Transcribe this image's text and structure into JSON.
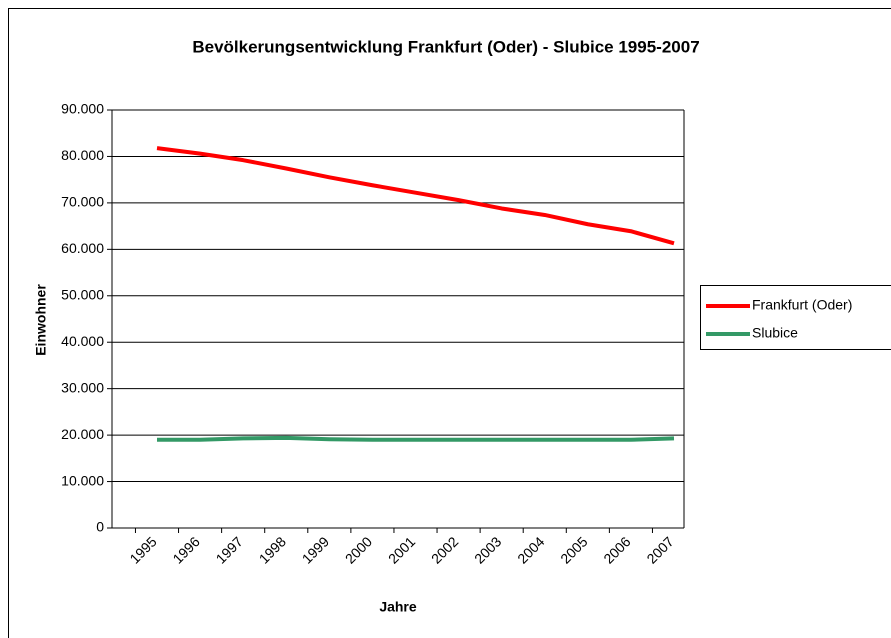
{
  "chart_data": {
    "type": "line",
    "title": "Bevölkerungsentwicklung Frankfurt (Oder) - Slubice 1995-2007",
    "x_label": "Jahre",
    "y_label": "Einwohner",
    "categories": [
      "1995",
      "1996",
      "1997",
      "1998",
      "1999",
      "2000",
      "2001",
      "2002",
      "2003",
      "2004",
      "2005",
      "2006",
      "2007"
    ],
    "series": [
      {
        "name": "Frankfurt (Oder)",
        "color": "#ff0000",
        "values": [
          81800,
          80600,
          79200,
          77400,
          75500,
          73800,
          72200,
          70600,
          68800,
          67400,
          65400,
          63900,
          61300
        ]
      },
      {
        "name": "Slubice",
        "color": "#339966",
        "values": [
          19000,
          19000,
          19300,
          19400,
          19100,
          19000,
          19000,
          19000,
          19000,
          19000,
          19000,
          19000,
          19300
        ]
      }
    ],
    "ylim": [
      0,
      90000
    ],
    "yticks": [
      0,
      {
        "value": 10000,
        "label": "10.000"
      },
      {
        "value": 20000,
        "label": "20.000"
      },
      {
        "value": 30000,
        "label": "30.000"
      },
      {
        "value": 40000,
        "label": "40.000"
      },
      {
        "value": 50000,
        "label": "50.000"
      },
      {
        "value": 60000,
        "label": "60.000"
      },
      {
        "value": 70000,
        "label": "70.000"
      },
      {
        "value": 80000,
        "label": "80.000"
      },
      {
        "value": 90000,
        "label": "90.000"
      }
    ],
    "grid": true,
    "legend": "right"
  }
}
